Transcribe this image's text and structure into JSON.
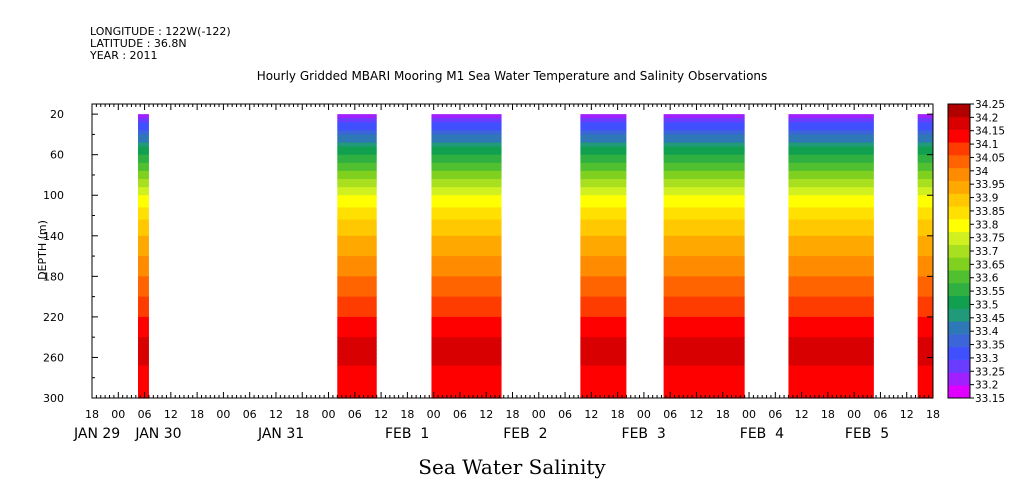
{
  "header_lines": [
    "LONGITUDE : 122W(-122)",
    "LATITUDE : 36.8N",
    "YEAR : 2011"
  ],
  "chart_data": {
    "type": "heatmap",
    "title": "Hourly Gridded MBARI Mooring M1 Sea Water Temperature and Salinity Observations",
    "xlabel": "Sea Water Salinity",
    "ylabel": "DEPTH (m)",
    "y_axis": {
      "range": [
        300,
        20
      ],
      "ticks": [
        20,
        60,
        100,
        140,
        180,
        220,
        260,
        300
      ],
      "inverted": true
    },
    "x_axis": {
      "unit": "hours since 2011-01-28 18:00",
      "range": [
        0,
        192
      ],
      "ticks": [
        {
          "h": 0,
          "label": "18"
        },
        {
          "h": 6,
          "label": "00"
        },
        {
          "h": 12,
          "label": "06"
        },
        {
          "h": 18,
          "label": "12"
        },
        {
          "h": 24,
          "label": "18"
        },
        {
          "h": 30,
          "label": "00"
        },
        {
          "h": 36,
          "label": "06"
        },
        {
          "h": 42,
          "label": "12"
        },
        {
          "h": 48,
          "label": "18"
        },
        {
          "h": 54,
          "label": "00"
        },
        {
          "h": 60,
          "label": "06"
        },
        {
          "h": 66,
          "label": "12"
        },
        {
          "h": 72,
          "label": "18"
        },
        {
          "h": 78,
          "label": "00"
        },
        {
          "h": 84,
          "label": "06"
        },
        {
          "h": 90,
          "label": "12"
        },
        {
          "h": 96,
          "label": "18"
        },
        {
          "h": 102,
          "label": "00"
        },
        {
          "h": 108,
          "label": "06"
        },
        {
          "h": 114,
          "label": "12"
        },
        {
          "h": 120,
          "label": "18"
        },
        {
          "h": 126,
          "label": "00"
        },
        {
          "h": 132,
          "label": "06"
        },
        {
          "h": 138,
          "label": "12"
        },
        {
          "h": 144,
          "label": "18"
        },
        {
          "h": 150,
          "label": "00"
        },
        {
          "h": 156,
          "label": "06"
        },
        {
          "h": 162,
          "label": "12"
        },
        {
          "h": 168,
          "label": "18"
        },
        {
          "h": 174,
          "label": "00"
        },
        {
          "h": 180,
          "label": "06"
        },
        {
          "h": 186,
          "label": "12"
        },
        {
          "h": 192,
          "label": "18"
        }
      ],
      "day_labels": [
        {
          "h": 0,
          "label": "JAN 29"
        },
        {
          "h": 14,
          "label": "JAN 30"
        },
        {
          "h": 42,
          "label": "JAN 31"
        },
        {
          "h": 71,
          "label": "FEB  1"
        },
        {
          "h": 98,
          "label": "FEB  2"
        },
        {
          "h": 125,
          "label": "FEB  3"
        },
        {
          "h": 152,
          "label": "FEB  4"
        },
        {
          "h": 176,
          "label": "FEB  5"
        }
      ]
    },
    "data_segments_hours": [
      [
        10.5,
        13
      ],
      [
        56,
        65
      ],
      [
        77.5,
        93.5
      ],
      [
        111.5,
        122
      ],
      [
        130.5,
        149
      ],
      [
        159,
        178.5
      ],
      [
        188.5,
        192
      ]
    ],
    "profile": {
      "depth": [
        20,
        40,
        60,
        80,
        100,
        120,
        140,
        160,
        180,
        200,
        220,
        240,
        260,
        280,
        300
      ],
      "salinity": [
        33.2,
        33.4,
        33.55,
        33.68,
        33.8,
        33.88,
        33.95,
        34.0,
        34.05,
        34.1,
        34.15,
        34.2,
        34.22,
        34.17,
        34.15
      ]
    },
    "colorbar": {
      "levels": [
        33.15,
        33.2,
        33.25,
        33.3,
        33.35,
        33.4,
        33.45,
        33.5,
        33.55,
        33.6,
        33.65,
        33.7,
        33.75,
        33.8,
        33.85,
        33.9,
        33.95,
        34,
        34.05,
        34.1,
        34.15,
        34.2,
        34.25
      ],
      "labels": [
        "33.15",
        "33.2",
        "33.25",
        "33.3",
        "33.35",
        "33.4",
        "33.45",
        "33.5",
        "33.55",
        "33.6",
        "33.65",
        "33.7",
        "33.75",
        "33.8",
        "33.85",
        "33.9",
        "33.95",
        "34",
        "34.05",
        "34.1",
        "34.15",
        "34.2",
        "34.25"
      ],
      "colors": [
        "#e000ff",
        "#a020ff",
        "#6a3cff",
        "#4050ff",
        "#3b65d8",
        "#2f78b8",
        "#209a78",
        "#10a050",
        "#30b040",
        "#50c030",
        "#80d020",
        "#a8e020",
        "#d0f020",
        "#ffff00",
        "#ffe000",
        "#ffc800",
        "#ffa800",
        "#ff8c00",
        "#ff6400",
        "#ff3c00",
        "#ff0000",
        "#d80000",
        "#b00000"
      ]
    }
  }
}
